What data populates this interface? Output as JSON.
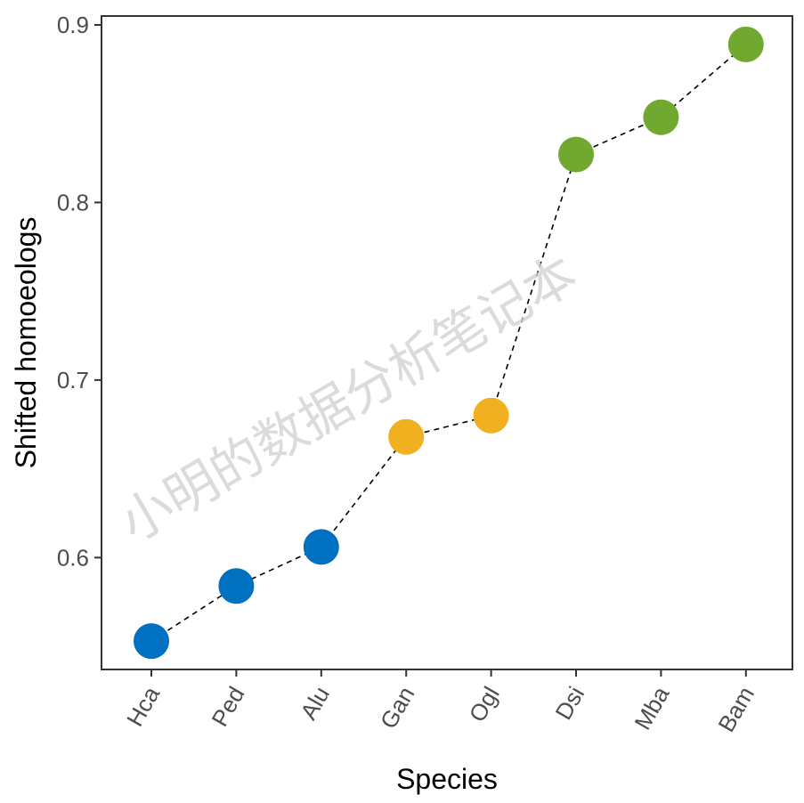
{
  "chart_data": {
    "type": "scatter",
    "title": "",
    "xlabel": "Species",
    "ylabel": "Shifted homoeologs",
    "categories": [
      "Hca",
      "Ped",
      "Alu",
      "Gan",
      "Ogl",
      "Dsi",
      "Mba",
      "Bam"
    ],
    "values": [
      0.553,
      0.584,
      0.606,
      0.668,
      0.68,
      0.827,
      0.848,
      0.889
    ],
    "point_colors": [
      "#0070C0",
      "#0070C0",
      "#0070C0",
      "#F0B020",
      "#F0B020",
      "#70A830",
      "#70A830",
      "#70A830"
    ],
    "yticks": [
      0.6,
      0.7,
      0.8,
      0.9
    ],
    "ytick_labels": [
      "0.6",
      "0.7",
      "0.8",
      "0.9"
    ],
    "ylim": [
      0.537,
      0.905
    ],
    "connector": "dashed",
    "grid": false,
    "legend": "none"
  },
  "watermark": "小明的数据分析笔记本"
}
